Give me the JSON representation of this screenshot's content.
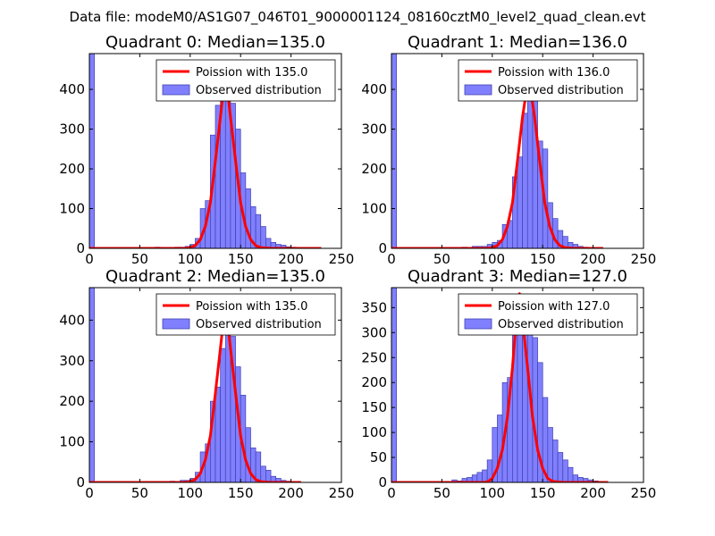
{
  "figure": {
    "suptitle": "Data file: modeM0/AS1G07_046T01_9000001124_08160cztM0_level2_quad_clean.evt"
  },
  "colors": {
    "bar_fill": "#8080ff",
    "bar_edge": "#4040b0",
    "poisson_line": "#ff0000"
  },
  "chart_data": [
    {
      "type": "bar",
      "title": "Quadrant 0: Median=135.0",
      "median": 135.0,
      "xlim": [
        0,
        250
      ],
      "ylim": [
        0,
        490
      ],
      "xticks": [
        "0",
        "50",
        "100",
        "150",
        "200",
        "250"
      ],
      "yticks": [
        "0",
        "100",
        "200",
        "300",
        "400"
      ],
      "xtick_values": [
        0,
        50,
        100,
        150,
        200,
        250
      ],
      "ytick_values": [
        0,
        100,
        200,
        300,
        400
      ],
      "bin_width": 5,
      "bins": [
        [
          0,
          490
        ],
        [
          65,
          3
        ],
        [
          70,
          1
        ],
        [
          75,
          2
        ],
        [
          80,
          1
        ],
        [
          85,
          3
        ],
        [
          90,
          3
        ],
        [
          95,
          5
        ],
        [
          100,
          10
        ],
        [
          105,
          25
        ],
        [
          110,
          100
        ],
        [
          115,
          120
        ],
        [
          120,
          285
        ],
        [
          125,
          360
        ],
        [
          130,
          395
        ],
        [
          135,
          405
        ],
        [
          140,
          365
        ],
        [
          145,
          300
        ],
        [
          150,
          190
        ],
        [
          155,
          150
        ],
        [
          160,
          105
        ],
        [
          165,
          85
        ],
        [
          170,
          55
        ],
        [
          175,
          25
        ],
        [
          180,
          15
        ],
        [
          185,
          10
        ],
        [
          190,
          8
        ],
        [
          195,
          4
        ],
        [
          200,
          3
        ]
      ],
      "curve": [
        [
          0,
          0
        ],
        [
          80,
          0
        ],
        [
          95,
          0
        ],
        [
          100,
          2
        ],
        [
          105,
          7
        ],
        [
          110,
          22
        ],
        [
          115,
          55
        ],
        [
          120,
          115
        ],
        [
          125,
          220
        ],
        [
          130,
          330
        ],
        [
          133,
          398
        ],
        [
          135,
          415
        ],
        [
          137,
          398
        ],
        [
          140,
          330
        ],
        [
          145,
          220
        ],
        [
          150,
          115
        ],
        [
          155,
          55
        ],
        [
          160,
          22
        ],
        [
          165,
          7
        ],
        [
          170,
          2
        ],
        [
          180,
          0
        ],
        [
          230,
          0
        ]
      ],
      "legend": [
        "Poission with 135.0",
        "Observed distribution"
      ]
    },
    {
      "type": "bar",
      "title": "Quadrant 1: Median=136.0",
      "median": 136.0,
      "xlim": [
        0,
        250
      ],
      "ylim": [
        0,
        490
      ],
      "xticks": [
        "0",
        "50",
        "100",
        "150",
        "200",
        "250"
      ],
      "yticks": [
        "0",
        "100",
        "200",
        "300",
        "400"
      ],
      "xtick_values": [
        0,
        50,
        100,
        150,
        200,
        250
      ],
      "ytick_values": [
        0,
        100,
        200,
        300,
        400
      ],
      "bin_width": 5,
      "bins": [
        [
          0,
          490
        ],
        [
          70,
          3
        ],
        [
          75,
          2
        ],
        [
          80,
          5
        ],
        [
          85,
          5
        ],
        [
          90,
          5
        ],
        [
          95,
          10
        ],
        [
          100,
          15
        ],
        [
          105,
          20
        ],
        [
          110,
          60
        ],
        [
          115,
          70
        ],
        [
          120,
          180
        ],
        [
          125,
          230
        ],
        [
          130,
          340
        ],
        [
          135,
          385
        ],
        [
          140,
          420
        ],
        [
          145,
          270
        ],
        [
          150,
          250
        ],
        [
          155,
          115
        ],
        [
          160,
          75
        ],
        [
          165,
          45
        ],
        [
          170,
          30
        ],
        [
          175,
          15
        ],
        [
          180,
          10
        ],
        [
          185,
          5
        ],
        [
          190,
          3
        ],
        [
          195,
          2
        ]
      ],
      "curve": [
        [
          0,
          0
        ],
        [
          80,
          0
        ],
        [
          95,
          0
        ],
        [
          100,
          2
        ],
        [
          105,
          7
        ],
        [
          110,
          22
        ],
        [
          115,
          55
        ],
        [
          120,
          115
        ],
        [
          125,
          220
        ],
        [
          130,
          330
        ],
        [
          134,
          398
        ],
        [
          136,
          418
        ],
        [
          138,
          398
        ],
        [
          142,
          330
        ],
        [
          147,
          220
        ],
        [
          152,
          115
        ],
        [
          157,
          55
        ],
        [
          162,
          22
        ],
        [
          167,
          7
        ],
        [
          172,
          2
        ],
        [
          180,
          0
        ],
        [
          210,
          0
        ]
      ],
      "legend": [
        "Poission with 136.0",
        "Observed distribution"
      ]
    },
    {
      "type": "bar",
      "title": "Quadrant 2: Median=135.0",
      "median": 135.0,
      "xlim": [
        0,
        250
      ],
      "ylim": [
        0,
        480
      ],
      "xticks": [
        "0",
        "50",
        "100",
        "150",
        "200",
        "250"
      ],
      "yticks": [
        "0",
        "100",
        "200",
        "300",
        "400"
      ],
      "xtick_values": [
        0,
        50,
        100,
        150,
        200,
        250
      ],
      "ytick_values": [
        0,
        100,
        200,
        300,
        400
      ],
      "bin_width": 5,
      "bins": [
        [
          0,
          480
        ],
        [
          80,
          3
        ],
        [
          85,
          2
        ],
        [
          90,
          5
        ],
        [
          95,
          5
        ],
        [
          100,
          10
        ],
        [
          105,
          25
        ],
        [
          110,
          75
        ],
        [
          115,
          95
        ],
        [
          120,
          200
        ],
        [
          125,
          235
        ],
        [
          130,
          330
        ],
        [
          135,
          370
        ],
        [
          140,
          360
        ],
        [
          145,
          285
        ],
        [
          150,
          215
        ],
        [
          155,
          135
        ],
        [
          160,
          85
        ],
        [
          165,
          75
        ],
        [
          170,
          40
        ],
        [
          175,
          30
        ],
        [
          180,
          15
        ],
        [
          185,
          10
        ],
        [
          190,
          5
        ],
        [
          195,
          3
        ]
      ],
      "curve": [
        [
          0,
          0
        ],
        [
          80,
          0
        ],
        [
          95,
          0
        ],
        [
          100,
          2
        ],
        [
          105,
          7
        ],
        [
          110,
          22
        ],
        [
          115,
          55
        ],
        [
          120,
          115
        ],
        [
          125,
          220
        ],
        [
          130,
          330
        ],
        [
          133,
          398
        ],
        [
          135,
          415
        ],
        [
          137,
          398
        ],
        [
          140,
          330
        ],
        [
          145,
          220
        ],
        [
          150,
          115
        ],
        [
          155,
          55
        ],
        [
          160,
          22
        ],
        [
          165,
          7
        ],
        [
          170,
          2
        ],
        [
          180,
          0
        ],
        [
          210,
          0
        ]
      ],
      "legend": [
        "Poission with 135.0",
        "Observed distribution"
      ]
    },
    {
      "type": "bar",
      "title": "Quadrant 3: Median=127.0",
      "median": 127.0,
      "xlim": [
        0,
        250
      ],
      "ylim": [
        0,
        390
      ],
      "xticks": [
        "0",
        "50",
        "100",
        "150",
        "200",
        "250"
      ],
      "yticks": [
        "0",
        "50",
        "100",
        "150",
        "200",
        "250",
        "300",
        "350"
      ],
      "xtick_values": [
        0,
        50,
        100,
        150,
        200,
        250
      ],
      "ytick_values": [
        0,
        50,
        100,
        150,
        200,
        250,
        300,
        350
      ],
      "bin_width": 5,
      "bins": [
        [
          0,
          390
        ],
        [
          60,
          5
        ],
        [
          65,
          3
        ],
        [
          70,
          8
        ],
        [
          75,
          10
        ],
        [
          80,
          15
        ],
        [
          85,
          20
        ],
        [
          90,
          25
        ],
        [
          95,
          45
        ],
        [
          100,
          110
        ],
        [
          105,
          135
        ],
        [
          110,
          200
        ],
        [
          115,
          210
        ],
        [
          120,
          295
        ],
        [
          125,
          330
        ],
        [
          130,
          370
        ],
        [
          135,
          330
        ],
        [
          140,
          290
        ],
        [
          145,
          240
        ],
        [
          150,
          170
        ],
        [
          155,
          110
        ],
        [
          160,
          85
        ],
        [
          165,
          60
        ],
        [
          170,
          45
        ],
        [
          175,
          30
        ],
        [
          180,
          15
        ],
        [
          185,
          10
        ],
        [
          190,
          8
        ],
        [
          195,
          5
        ],
        [
          200,
          3
        ]
      ],
      "curve": [
        [
          0,
          0
        ],
        [
          80,
          0
        ],
        [
          92,
          0
        ],
        [
          96,
          2
        ],
        [
          100,
          8
        ],
        [
          105,
          28
        ],
        [
          110,
          65
        ],
        [
          115,
          130
        ],
        [
          120,
          230
        ],
        [
          123,
          305
        ],
        [
          125,
          355
        ],
        [
          127,
          378
        ],
        [
          129,
          355
        ],
        [
          131,
          305
        ],
        [
          135,
          230
        ],
        [
          140,
          130
        ],
        [
          145,
          65
        ],
        [
          150,
          28
        ],
        [
          155,
          8
        ],
        [
          160,
          2
        ],
        [
          170,
          0
        ],
        [
          215,
          0
        ]
      ],
      "legend": [
        "Poission with 127.0",
        "Observed distribution"
      ]
    }
  ]
}
